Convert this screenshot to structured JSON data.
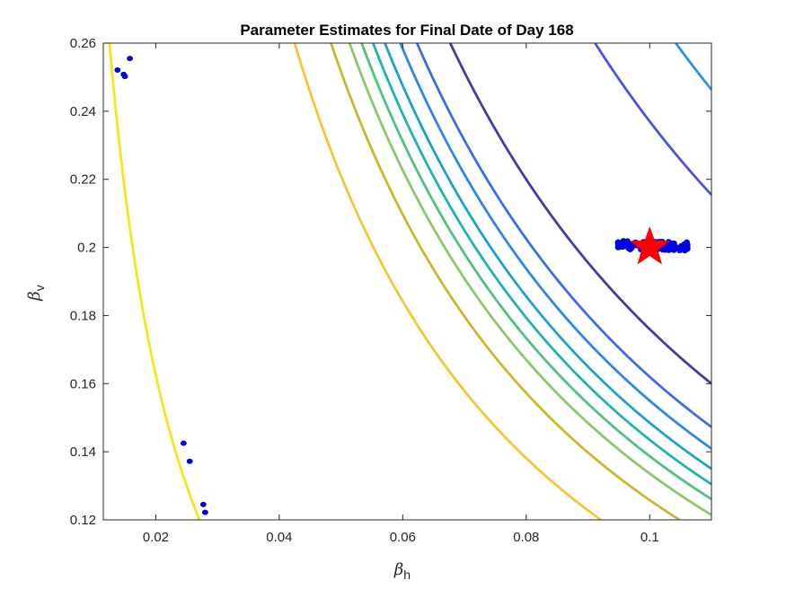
{
  "chart_data": {
    "type": "contour+scatter",
    "title": "Parameter Estimates for Final Date of Day 168",
    "xlabel": {
      "symbol": "β",
      "subscript": "h"
    },
    "ylabel": {
      "symbol": "β",
      "subscript": "v"
    },
    "xlim": [
      0.0115,
      0.11
    ],
    "ylim": [
      0.12,
      0.26
    ],
    "xticks": [
      0.02,
      0.04,
      0.06,
      0.08,
      0.1
    ],
    "xtick_labels": [
      "0.02",
      "0.04",
      "0.06",
      "0.08",
      "0.1"
    ],
    "yticks": [
      0.12,
      0.14,
      0.16,
      0.18,
      0.2,
      0.22,
      0.24,
      0.26
    ],
    "ytick_labels": [
      "0.12",
      "0.14",
      "0.16",
      "0.18",
      "0.2",
      "0.22",
      "0.24",
      "0.26"
    ],
    "grid": false,
    "legend": "none",
    "contour_levels": [
      {
        "k": 0.00325,
        "color": "#f5e61a"
      },
      {
        "k": 0.01105,
        "color": "#f2c634"
      },
      {
        "k": 0.01258,
        "color": "#c7b92c"
      },
      {
        "k": 0.01336,
        "color": "#8ec66a"
      },
      {
        "k": 0.01387,
        "color": "#50c280"
      },
      {
        "k": 0.01435,
        "color": "#1fb3ac"
      },
      {
        "k": 0.01485,
        "color": "#1e9fd2"
      },
      {
        "k": 0.0155,
        "color": "#2e86e8"
      },
      {
        "k": 0.0162,
        "color": "#3a6ee6"
      },
      {
        "k": 0.0176,
        "color": "#3e3ea8"
      },
      {
        "k": 0.0237,
        "color": "#4b53dc"
      },
      {
        "k": 0.0271,
        "color": "#2e8ff0"
      }
    ],
    "scatter_points": [
      [
        0.0138,
        0.2521
      ],
      [
        0.0148,
        0.2508
      ],
      [
        0.015,
        0.2502
      ],
      [
        0.0158,
        0.2555
      ],
      [
        0.0245,
        0.1425
      ],
      [
        0.0255,
        0.1372
      ],
      [
        0.0277,
        0.1245
      ],
      [
        0.028,
        0.1222
      ]
    ],
    "cluster": {
      "x_center": 0.1005,
      "y_center": 0.2005,
      "x_spread": 0.0055,
      "y_spread": 0.0013,
      "count": 160,
      "slope": -0.6
    },
    "true_value": {
      "x": 0.1,
      "y": 0.2,
      "marker": "star",
      "color": "#ff0000"
    },
    "scatter_color": "#0000e0"
  }
}
